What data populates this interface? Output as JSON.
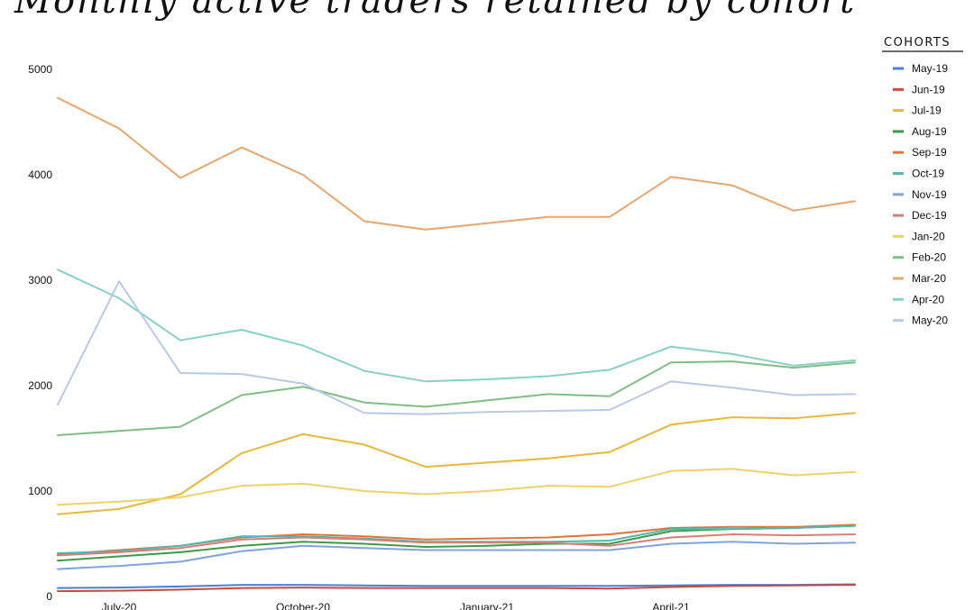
{
  "chart_data": {
    "type": "line",
    "title": "Monthly active traders retained by cohort",
    "legend_title": "COHORTS",
    "legend_position": "right",
    "xlabel": "",
    "ylabel": "",
    "ylim": [
      0,
      5000
    ],
    "yticks": [
      0,
      1000,
      2000,
      3000,
      4000,
      5000
    ],
    "x": [
      "2020-06",
      "2020-07",
      "2020-08",
      "2020-09",
      "2020-10",
      "2020-11",
      "2020-12",
      "2021-01",
      "2021-02",
      "2021-03",
      "2021-04",
      "2021-05",
      "2021-06",
      "2021-07"
    ],
    "x_tick_labels": [
      {
        "x": "2020-07",
        "label": "July-20"
      },
      {
        "x": "2020-10",
        "label": "October-20"
      },
      {
        "x": "2021-01",
        "label": "January-21"
      },
      {
        "x": "2021-04",
        "label": "April-21"
      }
    ],
    "grid": false,
    "series": [
      {
        "name": "May-19",
        "color": "#4a7fd4",
        "values": [
          80,
          85,
          95,
          110,
          110,
          105,
          100,
          100,
          100,
          100,
          105,
          110,
          110,
          115
        ]
      },
      {
        "name": "Jun-19",
        "color": "#c94a3c",
        "values": [
          50,
          55,
          65,
          80,
          85,
          80,
          80,
          80,
          80,
          75,
          90,
          100,
          105,
          110
        ]
      },
      {
        "name": "Jul-19",
        "color": "#e8b83a",
        "values": [
          780,
          830,
          970,
          1360,
          1540,
          1440,
          1230,
          1270,
          1310,
          1370,
          1630,
          1700,
          1690,
          1740
        ]
      },
      {
        "name": "Aug-19",
        "color": "#3c9a4a",
        "values": [
          340,
          380,
          420,
          480,
          520,
          500,
          470,
          480,
          500,
          500,
          620,
          640,
          650,
          670
        ]
      },
      {
        "name": "Sep-19",
        "color": "#e0743a",
        "values": [
          400,
          440,
          480,
          560,
          590,
          570,
          540,
          550,
          560,
          590,
          650,
          660,
          660,
          680
        ]
      },
      {
        "name": "Oct-19",
        "color": "#4fb8b0",
        "values": [
          410,
          430,
          480,
          570,
          570,
          550,
          520,
          520,
          520,
          530,
          640,
          640,
          650,
          670
        ]
      },
      {
        "name": "Nov-19",
        "color": "#7fa3dd",
        "values": [
          260,
          290,
          330,
          430,
          480,
          460,
          440,
          440,
          440,
          440,
          500,
          520,
          500,
          510
        ]
      },
      {
        "name": "Dec-19",
        "color": "#d97e76",
        "values": [
          390,
          420,
          460,
          540,
          560,
          540,
          510,
          510,
          510,
          480,
          560,
          590,
          580,
          590
        ]
      },
      {
        "name": "Jan-20",
        "color": "#f0d168",
        "values": [
          870,
          900,
          940,
          1050,
          1070,
          1000,
          970,
          1000,
          1050,
          1040,
          1190,
          1210,
          1150,
          1180
        ]
      },
      {
        "name": "Feb-20",
        "color": "#7fbf82",
        "values": [
          1530,
          1570,
          1610,
          1910,
          1990,
          1840,
          1800,
          1860,
          1920,
          1900,
          2220,
          2230,
          2170,
          2220
        ]
      },
      {
        "name": "Mar-20",
        "color": "#e8a56d",
        "values": [
          4730,
          4440,
          3970,
          4260,
          4000,
          3560,
          3480,
          3540,
          3600,
          3600,
          3980,
          3900,
          3660,
          3750
        ]
      },
      {
        "name": "Apr-20",
        "color": "#86d1c8",
        "values": [
          3100,
          2830,
          2430,
          2530,
          2380,
          2140,
          2040,
          2060,
          2090,
          2150,
          2370,
          2300,
          2190,
          2240
        ]
      },
      {
        "name": "May-20",
        "color": "#b8c9e8",
        "values": [
          1820,
          2990,
          2120,
          2110,
          2020,
          1740,
          1730,
          1750,
          1760,
          1770,
          2040,
          1980,
          1910,
          1920
        ]
      }
    ]
  }
}
